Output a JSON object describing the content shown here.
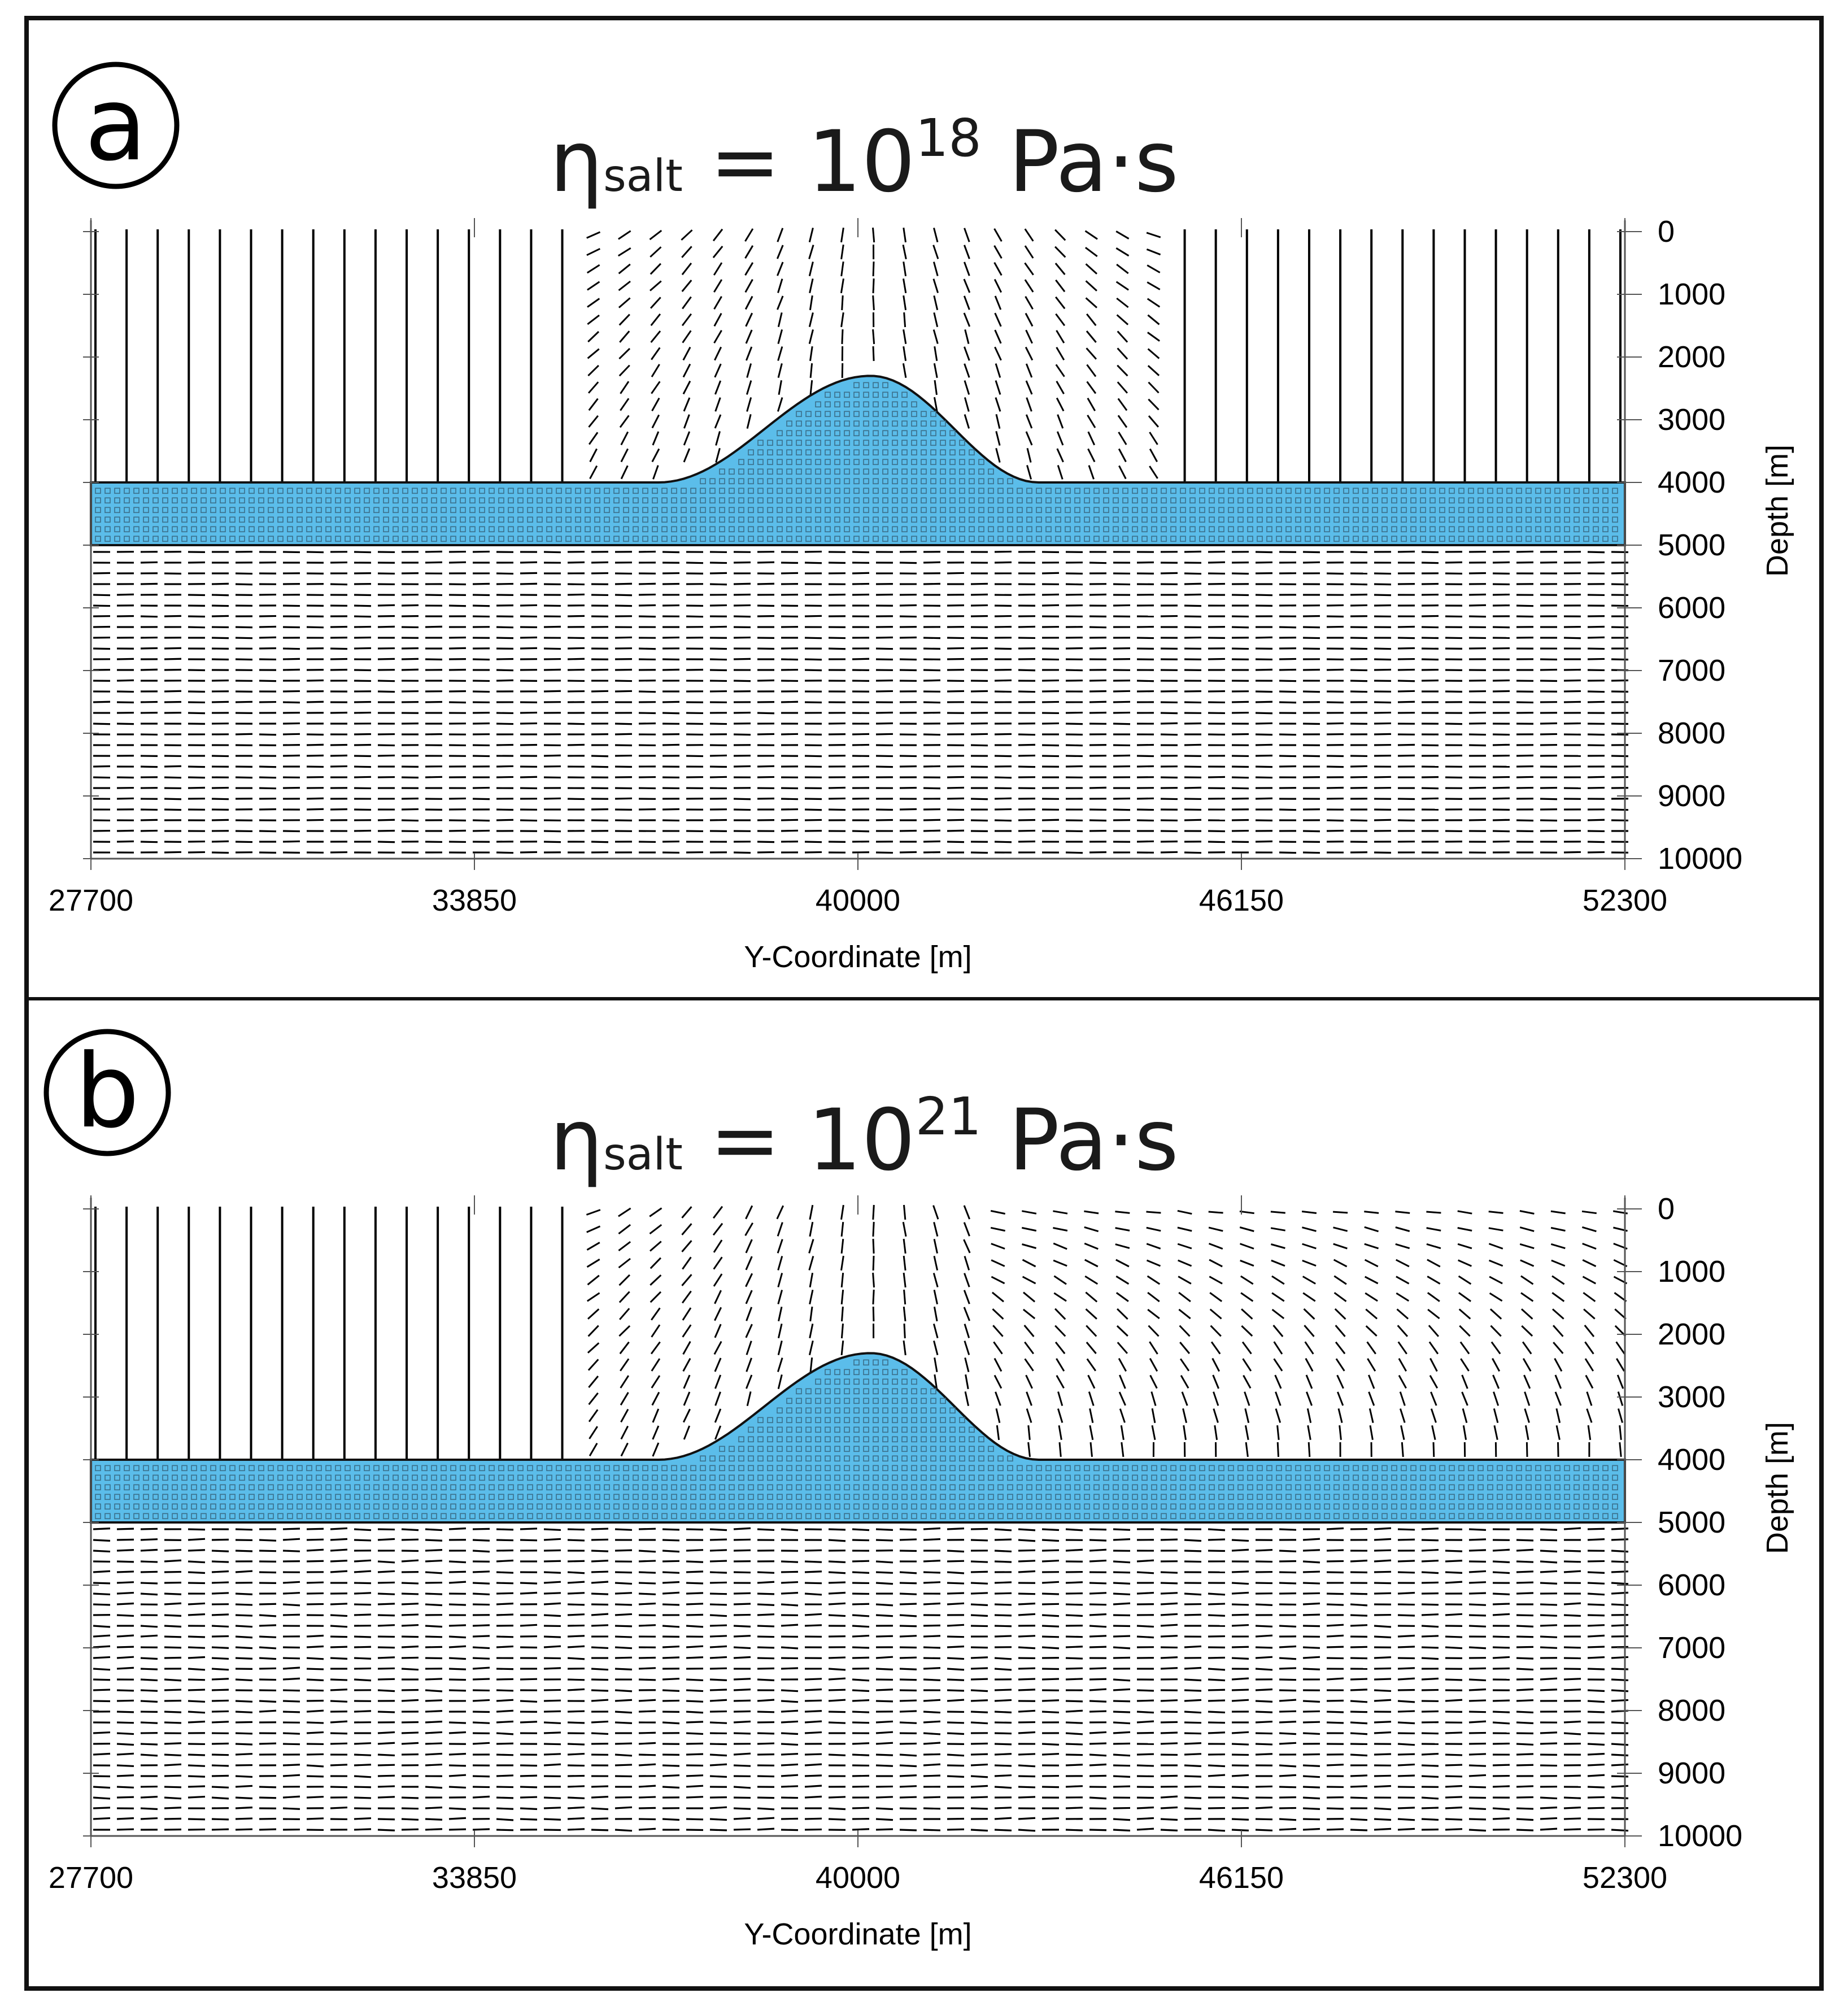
{
  "colors": {
    "salt": "#5bbdea",
    "ink": "#000000",
    "frame": "#111111"
  },
  "panels": [
    {
      "letter": "a",
      "title": {
        "eta": "η",
        "sub": "salt",
        "eq": " = 10",
        "exp": "18",
        "unit": " Pa·s"
      },
      "xlabel": "Y-Coordinate [m]",
      "ylabel": "Depth [m]",
      "xticks": [
        "27700",
        "33850",
        "40000",
        "46150",
        "52300"
      ],
      "yticks": [
        "0",
        "1000",
        "2000",
        "3000",
        "4000",
        "5000",
        "6000",
        "7000",
        "8000",
        "9000",
        "10000"
      ],
      "viscosity_exponent": 18
    },
    {
      "letter": "b",
      "title": {
        "eta": "η",
        "sub": "salt",
        "eq": " = 10",
        "exp": "21",
        "unit": " Pa·s"
      },
      "xlabel": "Y-Coordinate [m]",
      "ylabel": "Depth [m]",
      "xticks": [
        "27700",
        "33850",
        "40000",
        "46150",
        "52300"
      ],
      "yticks": [
        "0",
        "1000",
        "2000",
        "3000",
        "4000",
        "5000",
        "6000",
        "7000",
        "8000",
        "9000",
        "10000"
      ],
      "viscosity_exponent": 21
    }
  ],
  "model": {
    "x_range": [
      27700,
      52300
    ],
    "depth_range": [
      0,
      10000
    ],
    "salt_layer_top": 4000,
    "salt_layer_base": 5000,
    "diapir_crest_x": 40200,
    "diapir_crest_depth": 2300,
    "diapir_left_foot_x": 36800,
    "diapir_right_foot_x": 42900
  }
}
